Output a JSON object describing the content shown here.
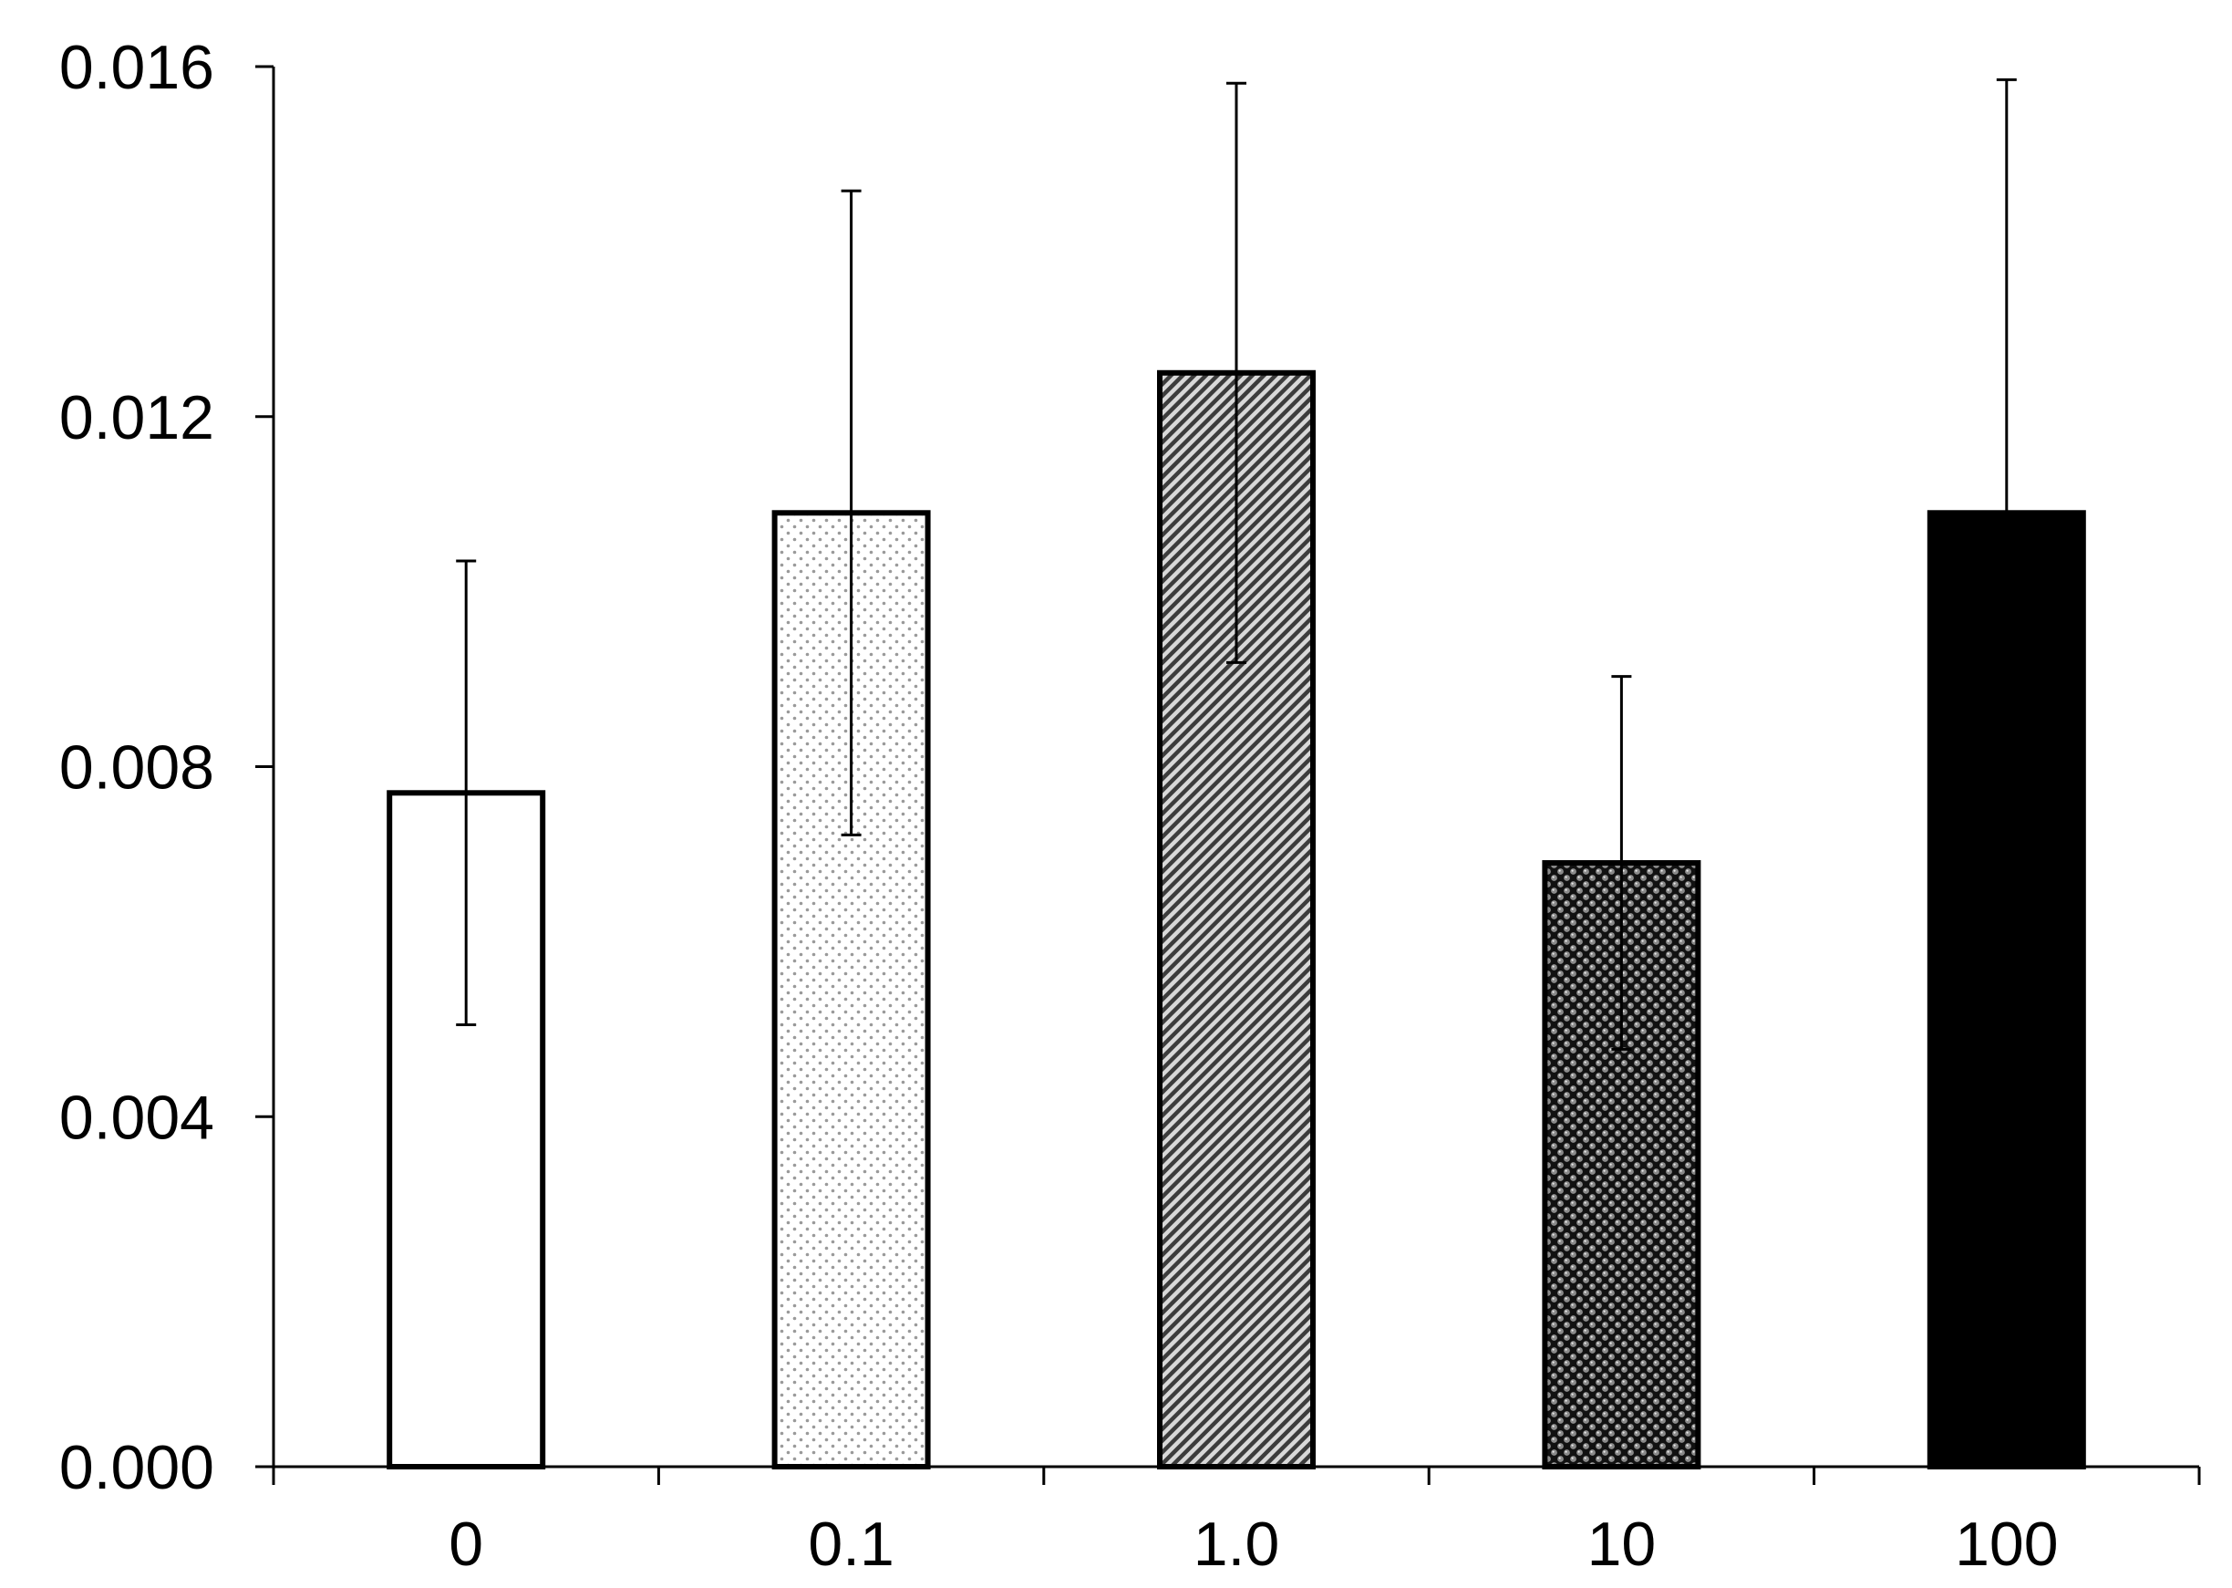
{
  "chart_data": {
    "type": "bar",
    "categories": [
      "0",
      "0.1",
      "1.0",
      "10",
      "100"
    ],
    "values": [
      0.0077,
      0.0109,
      0.0125,
      0.0069,
      0.0109
    ],
    "error_bars": [
      0.00265,
      0.00368,
      0.00331,
      0.00213,
      0.00495
    ],
    "bar_styles": [
      "white",
      "light-dots",
      "diagonal-hatch",
      "dark-dots",
      "solid-black"
    ],
    "title": "",
    "xlabel": "",
    "ylabel": "",
    "ylim": [
      0,
      0.016
    ],
    "yticks": [
      "0.000",
      "0.004",
      "0.008",
      "0.012",
      "0.016"
    ],
    "ytick_values": [
      0,
      0.004,
      0.008,
      0.012,
      0.016
    ],
    "grid": false,
    "legend": "none"
  }
}
